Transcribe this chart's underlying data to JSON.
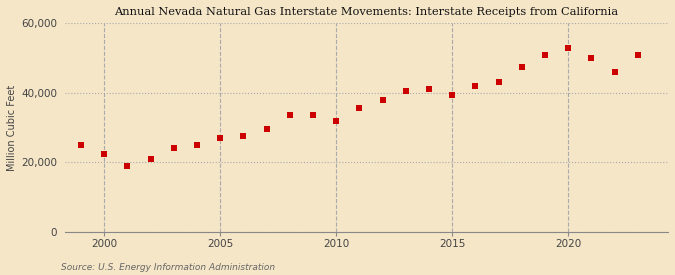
{
  "title": "Annual Nevada Natural Gas Interstate Movements: Interstate Receipts from California",
  "ylabel": "Million Cubic Feet",
  "source": "Source: U.S. Energy Information Administration",
  "background_color": "#f5e6c8",
  "plot_background_color": "#f5e6c8",
  "marker_color": "#cc0000",
  "grid_color": "#aaaaaa",
  "years": [
    1999,
    2000,
    2001,
    2002,
    2003,
    2004,
    2005,
    2006,
    2007,
    2008,
    2009,
    2010,
    2011,
    2012,
    2013,
    2014,
    2015,
    2016,
    2017,
    2018,
    2019,
    2020,
    2021,
    2022,
    2023
  ],
  "values": [
    25000,
    22500,
    19000,
    21000,
    24000,
    25000,
    27000,
    27500,
    29500,
    33500,
    33500,
    32000,
    35500,
    38000,
    40500,
    41000,
    39500,
    42000,
    43000,
    47500,
    51000,
    53000,
    50000,
    46000,
    51000
  ],
  "ylim": [
    0,
    60000
  ],
  "yticks": [
    0,
    20000,
    40000,
    60000
  ],
  "xlim": [
    1998.3,
    2024.3
  ],
  "xticks": [
    2000,
    2005,
    2010,
    2015,
    2020
  ]
}
